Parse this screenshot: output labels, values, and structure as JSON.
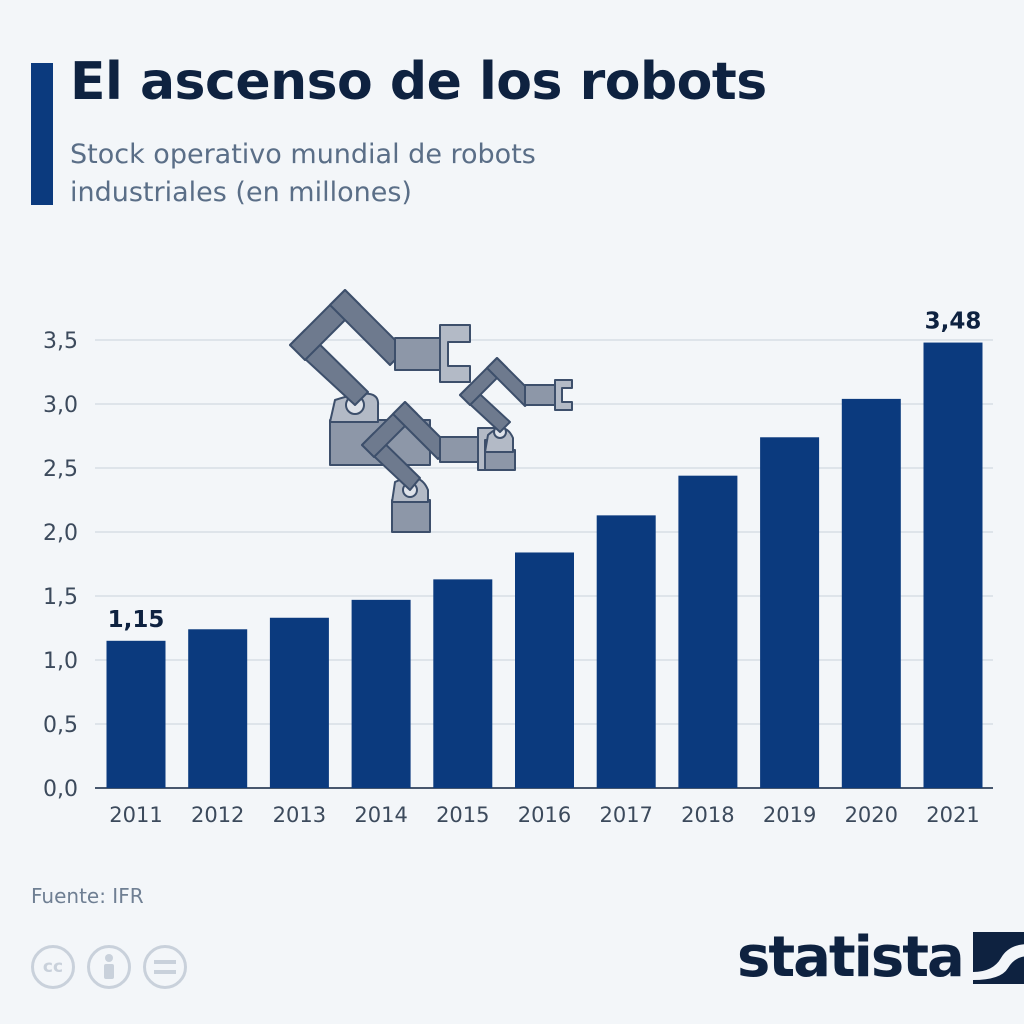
{
  "header": {
    "title": "El ascenso de los robots",
    "subtitle": "Stock operativo mundial de robots industriales (en millones)"
  },
  "footer": {
    "source": "Fuente: IFR",
    "brand": "statista"
  },
  "colors": {
    "bar": "#0b3a7e",
    "title": "#0e2240",
    "grid": "#c9d2dc",
    "background": "#f3f6f9"
  },
  "icons": [
    "robot-arms-illustration-icon",
    "cc-icon",
    "attribution-icon",
    "no-derivatives-icon",
    "statista-logo-icon"
  ],
  "chart_data": {
    "type": "bar",
    "categories": [
      "2011",
      "2012",
      "2013",
      "2014",
      "2015",
      "2016",
      "2017",
      "2018",
      "2019",
      "2020",
      "2021"
    ],
    "values": [
      1.15,
      1.24,
      1.33,
      1.47,
      1.63,
      1.84,
      2.13,
      2.44,
      2.74,
      3.04,
      3.48
    ],
    "data_labels": {
      "2011": "1,15",
      "2021": "3,48"
    },
    "y_ticks": [
      "0,0",
      "0,5",
      "1,0",
      "1,5",
      "2,0",
      "2,5",
      "3,0",
      "3,5"
    ],
    "ylim": [
      0,
      3.5
    ],
    "grid": true,
    "title": "El ascenso de los robots",
    "xlabel": "",
    "ylabel": ""
  }
}
